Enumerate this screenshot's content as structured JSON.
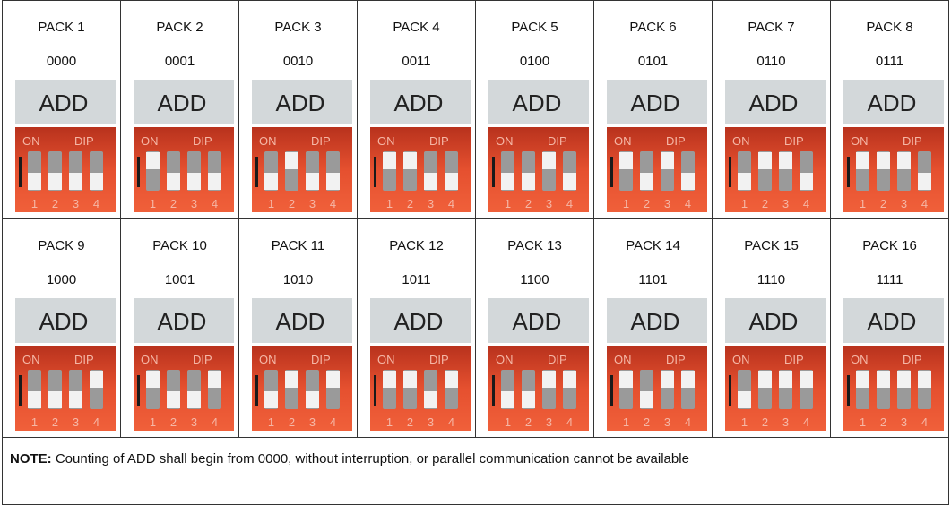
{
  "table": {
    "rows": [
      [
        {
          "name": "PACK 1",
          "code": "0000"
        },
        {
          "name": "PACK 2",
          "code": "0001"
        },
        {
          "name": "PACK 3",
          "code": "0010"
        },
        {
          "name": "PACK 4",
          "code": "0011"
        },
        {
          "name": "PACK 5",
          "code": "0100"
        },
        {
          "name": "PACK 6",
          "code": "0101"
        },
        {
          "name": "PACK 7",
          "code": "0110"
        },
        {
          "name": "PACK 8",
          "code": "0111"
        }
      ],
      [
        {
          "name": "PACK 9",
          "code": "1000"
        },
        {
          "name": "PACK 10",
          "code": "1001"
        },
        {
          "name": "PACK 11",
          "code": "1010"
        },
        {
          "name": "PACK 12",
          "code": "1011"
        },
        {
          "name": "PACK 13",
          "code": "1100"
        },
        {
          "name": "PACK 14",
          "code": "1101"
        },
        {
          "name": "PACK 15",
          "code": "1110"
        },
        {
          "name": "PACK 16",
          "code": "1111"
        }
      ]
    ]
  },
  "switch_image": {
    "add": "ADD",
    "on": "ON",
    "dip": "DIP",
    "numbers": [
      "1",
      "2",
      "3",
      "4"
    ]
  },
  "note": {
    "label": "NOTE:",
    "text": "Counting of ADD shall begin from 0000, without interruption, or parallel communication cannot be available"
  }
}
